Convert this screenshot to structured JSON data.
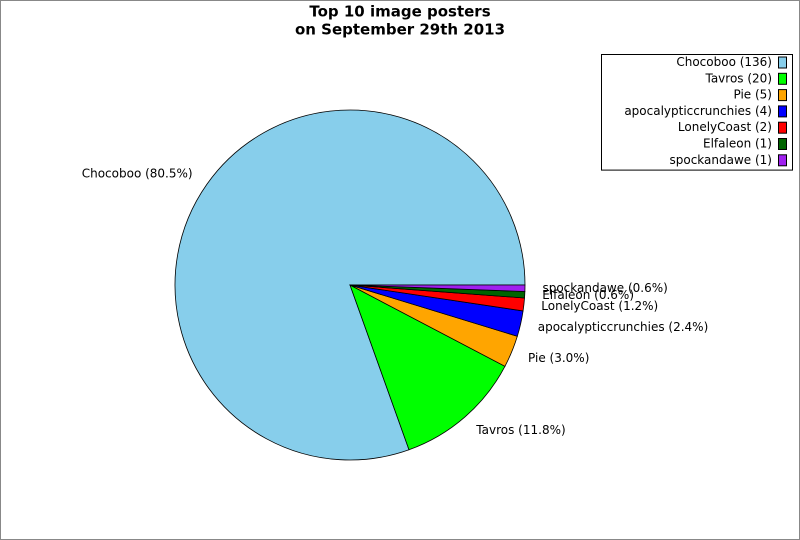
{
  "chart_data": {
    "type": "pie",
    "title": [
      "Top 10 image posters",
      "on September 29th 2013"
    ],
    "categories": [
      "Chocoboo",
      "Tavros",
      "Pie",
      "apocalypticcrunchies",
      "LonelyCoast",
      "Elfaleon",
      "spockandawe"
    ],
    "values": [
      136,
      20,
      5,
      4,
      2,
      1,
      1
    ],
    "value_labels": [
      "Chocoboo (80.5%)",
      "Tavros (11.8%)",
      "Pie (3.0%)",
      "apocalypticcrunchies (2.4%)",
      "LonelyCoast (1.2%)",
      "Elfaleon (0.6%)",
      "spockandawe (0.6%)"
    ],
    "legend_labels": [
      "Chocoboo (136)",
      "Tavros (20)",
      "Pie (5)",
      "apocalypticcrunchies (4)",
      "LonelyCoast (2)",
      "Elfaleon (1)",
      "spockandawe (1)"
    ],
    "colors": [
      "#87ceeb",
      "#00ff00",
      "#ffa500",
      "#0000ff",
      "#ff0000",
      "#006400",
      "#a020f0"
    ],
    "legend": "upper right"
  }
}
